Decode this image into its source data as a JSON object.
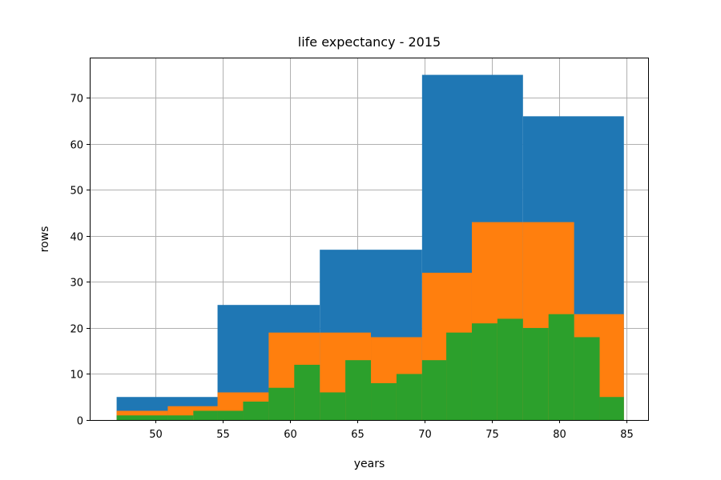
{
  "chart_data": {
    "type": "bar",
    "title": "life expectancy - 2015",
    "xlabel": "years",
    "ylabel": "rows",
    "xlim": [
      45.1,
      86.6
    ],
    "ylim": [
      0,
      78.75
    ],
    "xticks": [
      50,
      55,
      60,
      65,
      70,
      75,
      80,
      85
    ],
    "yticks": [
      0,
      10,
      20,
      30,
      40,
      50,
      60,
      70
    ],
    "grid": true,
    "series": [
      {
        "color": "#1f77b4",
        "bins": [
          {
            "x0": 47.1,
            "x1": 54.6,
            "value": 5
          },
          {
            "x0": 54.6,
            "x1": 62.2,
            "value": 25
          },
          {
            "x0": 62.2,
            "x1": 69.8,
            "value": 37
          },
          {
            "x0": 69.8,
            "x1": 77.3,
            "value": 75
          },
          {
            "x0": 77.3,
            "x1": 84.8,
            "value": 66
          }
        ]
      },
      {
        "color": "#ff7f0e",
        "bins": [
          {
            "x0": 47.1,
            "x1": 50.9,
            "value": 2
          },
          {
            "x0": 50.9,
            "x1": 54.6,
            "value": 3
          },
          {
            "x0": 54.6,
            "x1": 58.4,
            "value": 6
          },
          {
            "x0": 58.4,
            "x1": 62.2,
            "value": 19
          },
          {
            "x0": 62.2,
            "x1": 66.0,
            "value": 19
          },
          {
            "x0": 66.0,
            "x1": 69.8,
            "value": 18
          },
          {
            "x0": 69.8,
            "x1": 73.5,
            "value": 32
          },
          {
            "x0": 73.5,
            "x1": 77.3,
            "value": 43
          },
          {
            "x0": 77.3,
            "x1": 81.1,
            "value": 43
          },
          {
            "x0": 81.1,
            "x1": 84.8,
            "value": 23
          }
        ]
      },
      {
        "color": "#2ca02c",
        "bins": [
          {
            "x0": 47.1,
            "x1": 49.0,
            "value": 1
          },
          {
            "x0": 49.0,
            "x1": 50.9,
            "value": 1
          },
          {
            "x0": 50.9,
            "x1": 52.8,
            "value": 1
          },
          {
            "x0": 52.8,
            "x1": 54.6,
            "value": 2
          },
          {
            "x0": 54.6,
            "x1": 56.5,
            "value": 2
          },
          {
            "x0": 56.5,
            "x1": 58.4,
            "value": 4
          },
          {
            "x0": 58.4,
            "x1": 60.3,
            "value": 7
          },
          {
            "x0": 60.3,
            "x1": 62.2,
            "value": 12
          },
          {
            "x0": 62.2,
            "x1": 64.1,
            "value": 6
          },
          {
            "x0": 64.1,
            "x1": 66.0,
            "value": 13
          },
          {
            "x0": 66.0,
            "x1": 67.9,
            "value": 8
          },
          {
            "x0": 67.9,
            "x1": 69.8,
            "value": 10
          },
          {
            "x0": 69.8,
            "x1": 71.6,
            "value": 13
          },
          {
            "x0": 71.6,
            "x1": 73.5,
            "value": 19
          },
          {
            "x0": 73.5,
            "x1": 75.4,
            "value": 21
          },
          {
            "x0": 75.4,
            "x1": 77.3,
            "value": 22
          },
          {
            "x0": 77.3,
            "x1": 79.2,
            "value": 20
          },
          {
            "x0": 79.2,
            "x1": 81.1,
            "value": 23
          },
          {
            "x0": 81.1,
            "x1": 83.0,
            "value": 18
          },
          {
            "x0": 83.0,
            "x1": 84.8,
            "value": 5
          }
        ]
      }
    ]
  }
}
